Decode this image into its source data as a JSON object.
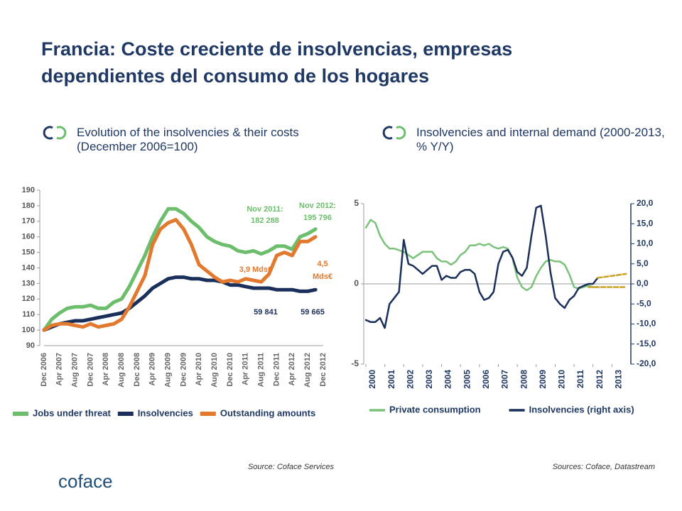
{
  "header": {
    "title": "Francia: Coste creciente de insolvencias, empresas dependientes del consumo de los hogares"
  },
  "logo": "coface",
  "chart_data": [
    {
      "type": "line",
      "title": "Evolution of the insolvencies & their costs (December 2006=100)",
      "source": "Source: Coface Services",
      "categories": [
        "Dec 2006",
        null,
        "Apr 2007",
        null,
        "Aug 2007",
        null,
        "Dec 2007",
        null,
        "Apr 2008",
        null,
        "Aug 2008",
        null,
        "Dec 2008",
        null,
        "Apr 2009",
        null,
        "Aug 2009",
        null,
        "Dec 2009",
        null,
        "Apr 2010",
        null,
        "Aug 2010",
        null,
        "Dec 2010",
        null,
        "Apr 2011",
        null,
        "Aug 2011",
        null,
        "Dec 2011",
        null,
        "Apr 2012",
        null,
        "Aug 2012",
        null,
        "Dec 2012"
      ],
      "ylim": [
        90,
        190
      ],
      "yticks": [
        90,
        100,
        110,
        120,
        130,
        140,
        150,
        160,
        170,
        180,
        190
      ],
      "legend": "bottom",
      "series": [
        {
          "name": "Jobs under threat",
          "color": "#6cbd6c",
          "values": [
            100,
            107,
            111,
            114,
            115,
            115,
            116,
            114,
            114,
            118,
            120,
            128,
            138,
            148,
            160,
            170,
            178,
            178,
            175,
            170,
            166,
            160,
            157,
            155,
            154,
            151,
            150,
            151,
            149,
            151,
            154,
            154,
            152,
            160,
            162,
            165,
            null
          ]
        },
        {
          "name": "Insolvencies",
          "color": "#1b2f5b",
          "values": [
            100,
            102,
            104,
            105,
            106,
            106,
            107,
            108,
            109,
            110,
            111,
            114,
            118,
            122,
            127,
            130,
            133,
            134,
            134,
            133,
            133,
            132,
            132,
            131,
            129,
            129,
            128,
            127,
            127,
            127,
            126,
            126,
            126,
            125,
            125,
            126,
            null
          ]
        },
        {
          "name": "Outstanding amounts",
          "color": "#e2792e",
          "values": [
            100,
            103,
            104,
            104,
            103,
            102,
            104,
            102,
            103,
            104,
            107,
            115,
            125,
            135,
            155,
            165,
            169,
            171,
            165,
            155,
            142,
            138,
            134,
            131,
            132,
            131,
            133,
            132,
            131,
            136,
            148,
            150,
            148,
            157,
            157,
            160,
            null
          ]
        }
      ],
      "annotations": [
        {
          "text": "Nov 2011:",
          "color": "#6cbd6c"
        },
        {
          "text": "182 288",
          "color": "#6cbd6c"
        },
        {
          "text": "Nov 2012:",
          "color": "#6cbd6c"
        },
        {
          "text": "195 796",
          "color": "#6cbd6c"
        },
        {
          "text": "3,9 Mds€",
          "color": "#e2792e"
        },
        {
          "text": "4,5",
          "color": "#e2792e"
        },
        {
          "text": "Mds€",
          "color": "#e2792e"
        },
        {
          "text": "59 841",
          "color": "#1b2f5b"
        },
        {
          "text": "59 665",
          "color": "#1b2f5b"
        }
      ]
    },
    {
      "type": "line",
      "title": "Insolvencies and internal demand (2000-2013, % Y/Y)",
      "source": "Sources: Coface, Datastream",
      "xlim": [
        2000,
        2014
      ],
      "xticks": [
        2000,
        2001,
        2002,
        2003,
        2004,
        2005,
        2006,
        2007,
        2008,
        2009,
        2010,
        2011,
        2012,
        2013
      ],
      "ylim": [
        -5,
        5
      ],
      "yticks": [
        -5,
        0,
        5
      ],
      "y2lim": [
        -20,
        20
      ],
      "y2ticks": [
        {
          "value": -20,
          "label": "-20,0"
        },
        {
          "value": -15,
          "label": "-15,0"
        },
        {
          "value": -10,
          "label": "-10,0"
        },
        {
          "value": -5,
          "label": "-5,0"
        },
        {
          "value": 0,
          "label": "0,0"
        },
        {
          "value": 5,
          "label": "5,0"
        },
        {
          "value": 10,
          "label": "10,0"
        },
        {
          "value": 15,
          "label": "15,0"
        },
        {
          "value": 20,
          "label": "20,0"
        }
      ],
      "legend": "bottom",
      "x": [
        2000,
        2000.25,
        2000.5,
        2000.75,
        2001,
        2001.25,
        2001.5,
        2001.75,
        2002,
        2002.25,
        2002.5,
        2002.75,
        2003,
        2003.25,
        2003.5,
        2003.75,
        2004,
        2004.25,
        2004.5,
        2004.75,
        2005,
        2005.25,
        2005.5,
        2005.75,
        2006,
        2006.25,
        2006.5,
        2006.75,
        2007,
        2007.25,
        2007.5,
        2007.75,
        2008,
        2008.25,
        2008.5,
        2008.75,
        2009,
        2009.25,
        2009.5,
        2009.75,
        2010,
        2010.25,
        2010.5,
        2010.75,
        2011,
        2011.25,
        2011.5,
        2011.75,
        2012,
        2012.25
      ],
      "series": [
        {
          "name": "Private consumption",
          "color": "#7ac27a",
          "values": [
            3.5,
            4.0,
            3.8,
            3.0,
            2.5,
            2.2,
            2.2,
            2.1,
            2.0,
            1.8,
            1.6,
            1.8,
            2.0,
            2.0,
            2.0,
            1.6,
            1.4,
            1.4,
            1.2,
            1.4,
            1.8,
            2.0,
            2.4,
            2.4,
            2.5,
            2.4,
            2.5,
            2.3,
            2.2,
            2.3,
            2.2,
            1.6,
            0.4,
            -0.2,
            -0.4,
            -0.2,
            0.5,
            1.0,
            1.4,
            1.5,
            1.4,
            1.4,
            1.2,
            0.6,
            -0.2,
            -0.3,
            -0.2,
            -0.1,
            -0.2,
            -0.2
          ]
        },
        {
          "name": "Insolvencies (right axis)",
          "color": "#1b2f5b",
          "axis": "y2",
          "values": [
            -9,
            -9.5,
            -9.5,
            -8.5,
            -11,
            -5,
            -3.5,
            -2,
            11,
            5,
            4.5,
            3.5,
            2.5,
            3.5,
            4.5,
            4.5,
            1,
            2,
            1.5,
            1.5,
            3,
            3.5,
            3.5,
            2.5,
            -2,
            -4,
            -3.5,
            -2,
            5,
            8,
            8.5,
            6.5,
            3,
            2,
            4,
            12,
            19,
            19.5,
            12,
            3,
            -3.5,
            -5,
            -6,
            -4,
            -3,
            -1,
            -0.5,
            0,
            0,
            1.5
          ]
        },
        {
          "color": "#c9a227",
          "dashed": true,
          "axis": "y2",
          "x": [
            2012.25,
            2013.75
          ],
          "values": [
            1.5,
            2.5
          ]
        },
        {
          "color": "#c9a227",
          "dashed": true,
          "x": [
            2011.75,
            2013.75
          ],
          "values": [
            -0.2,
            -0.2
          ]
        }
      ]
    }
  ]
}
